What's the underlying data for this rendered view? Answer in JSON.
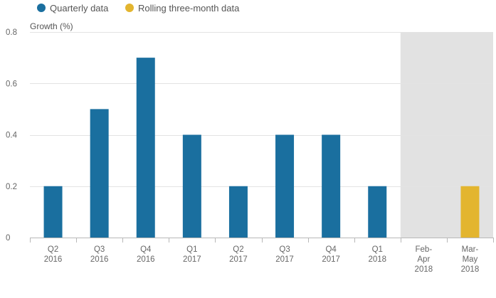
{
  "chart_data": {
    "type": "bar",
    "legend": {
      "position": "top-left",
      "items": [
        {
          "label": "Quarterly data",
          "color": "#1a6f9f"
        },
        {
          "label": "Rolling three-month data",
          "color": "#e3b52f"
        }
      ]
    },
    "ylabel": "Growth (%)",
    "xlabel": "",
    "ylim": [
      0,
      0.8
    ],
    "yticks": [
      0,
      0.2,
      0.4,
      0.6,
      0.8
    ],
    "ytick_labels": [
      "0",
      "0.2",
      "0.4",
      "0.6",
      "0.8"
    ],
    "grid": true,
    "categories": [
      [
        "Q2",
        "2016"
      ],
      [
        "Q3",
        "2016"
      ],
      [
        "Q4",
        "2016"
      ],
      [
        "Q1",
        "2017"
      ],
      [
        "Q2",
        "2017"
      ],
      [
        "Q3",
        "2017"
      ],
      [
        "Q4",
        "2017"
      ],
      [
        "Q1",
        "2018"
      ],
      [
        "Feb-",
        "Apr",
        "2018"
      ],
      [
        "Mar-",
        "May",
        "2018"
      ]
    ],
    "series": [
      {
        "name": "Quarterly data",
        "color": "#1a6f9f",
        "values": [
          0.2,
          0.5,
          0.7,
          0.4,
          0.2,
          0.4,
          0.4,
          0.2,
          null,
          null
        ]
      },
      {
        "name": "Rolling three-month data",
        "color": "#e3b52f",
        "values": [
          null,
          null,
          null,
          null,
          null,
          null,
          null,
          null,
          null,
          0.2
        ]
      }
    ],
    "shaded_region": {
      "from_category": 8,
      "to_category": 9,
      "color": "#e2e2e2"
    }
  }
}
